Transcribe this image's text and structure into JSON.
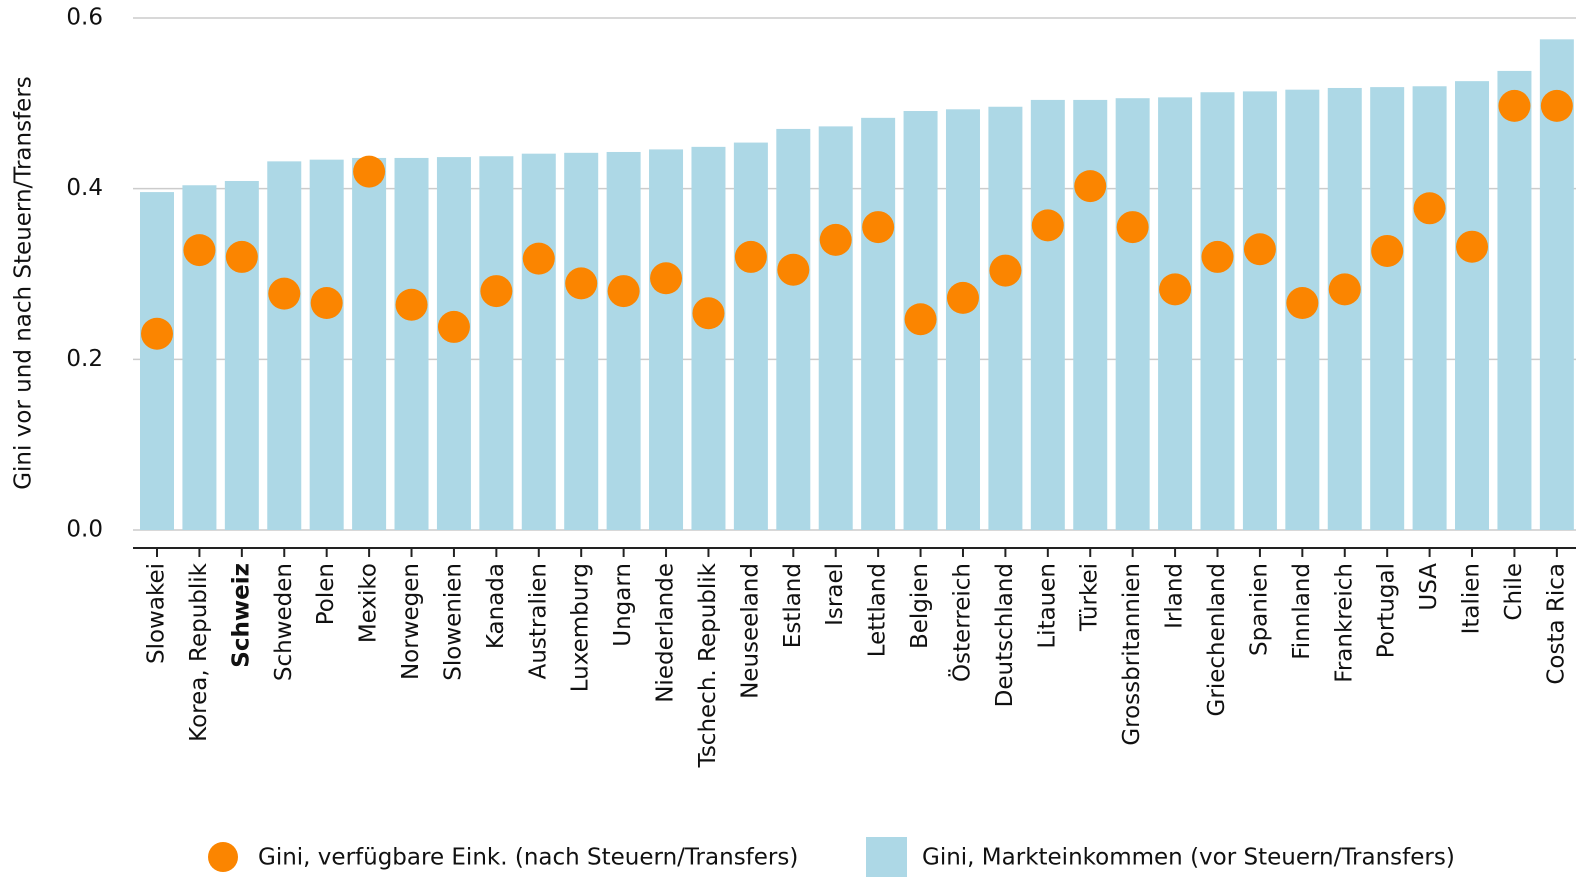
{
  "chart_data": {
    "type": "bar",
    "ylabel": "Gini vor und nach Steuern/Transfers",
    "categories": [
      "Slowakei",
      "Korea, Republik",
      "Schweiz",
      "Schweden",
      "Polen",
      "Mexiko",
      "Norwegen",
      "Slowenien",
      "Kanada",
      "Australien",
      "Luxemburg",
      "Ungarn",
      "Niederlande",
      "Tschech. Republik",
      "Neuseeland",
      "Estland",
      "Israel",
      "Lettland",
      "Belgien",
      "Österreich",
      "Deutschland",
      "Litauen",
      "Türkei",
      "Grossbritannien",
      "Irland",
      "Griechenland",
      "Spanien",
      "Finnland",
      "Frankreich",
      "Portugal",
      "USA",
      "Italien",
      "Chile",
      "Costa Rica"
    ],
    "series": [
      {
        "name": "Gini, Markteinkommen (vor Steuern/Transfers)",
        "color": "#add8e6",
        "kind": "bar",
        "values": [
          0.396,
          0.404,
          0.409,
          0.432,
          0.434,
          0.436,
          0.436,
          0.437,
          0.438,
          0.441,
          0.442,
          0.443,
          0.446,
          0.449,
          0.454,
          0.47,
          0.473,
          0.483,
          0.491,
          0.493,
          0.496,
          0.504,
          0.504,
          0.506,
          0.507,
          0.513,
          0.514,
          0.516,
          0.518,
          0.519,
          0.52,
          0.526,
          0.538,
          0.575
        ]
      },
      {
        "name": "Gini, verfügbare Eink. (nach Steuern/Transfers)",
        "color": "#fb8500",
        "kind": "dot",
        "values": [
          0.23,
          0.328,
          0.32,
          0.277,
          0.266,
          0.42,
          0.264,
          0.238,
          0.28,
          0.318,
          0.289,
          0.28,
          0.295,
          0.254,
          0.32,
          0.305,
          0.34,
          0.355,
          0.247,
          0.272,
          0.304,
          0.357,
          0.403,
          0.355,
          0.282,
          0.32,
          0.329,
          0.266,
          0.282,
          0.327,
          0.377,
          0.332,
          0.497,
          0.497
        ]
      }
    ],
    "ylim": [
      0,
      0.6
    ],
    "yticks": [
      {
        "value": 0,
        "label": "0.0"
      },
      {
        "value": 0.2,
        "label": "0.2"
      },
      {
        "value": 0.4,
        "label": "0.4"
      },
      {
        "value": 0.6,
        "label": "0.6"
      }
    ],
    "grid": true
  }
}
